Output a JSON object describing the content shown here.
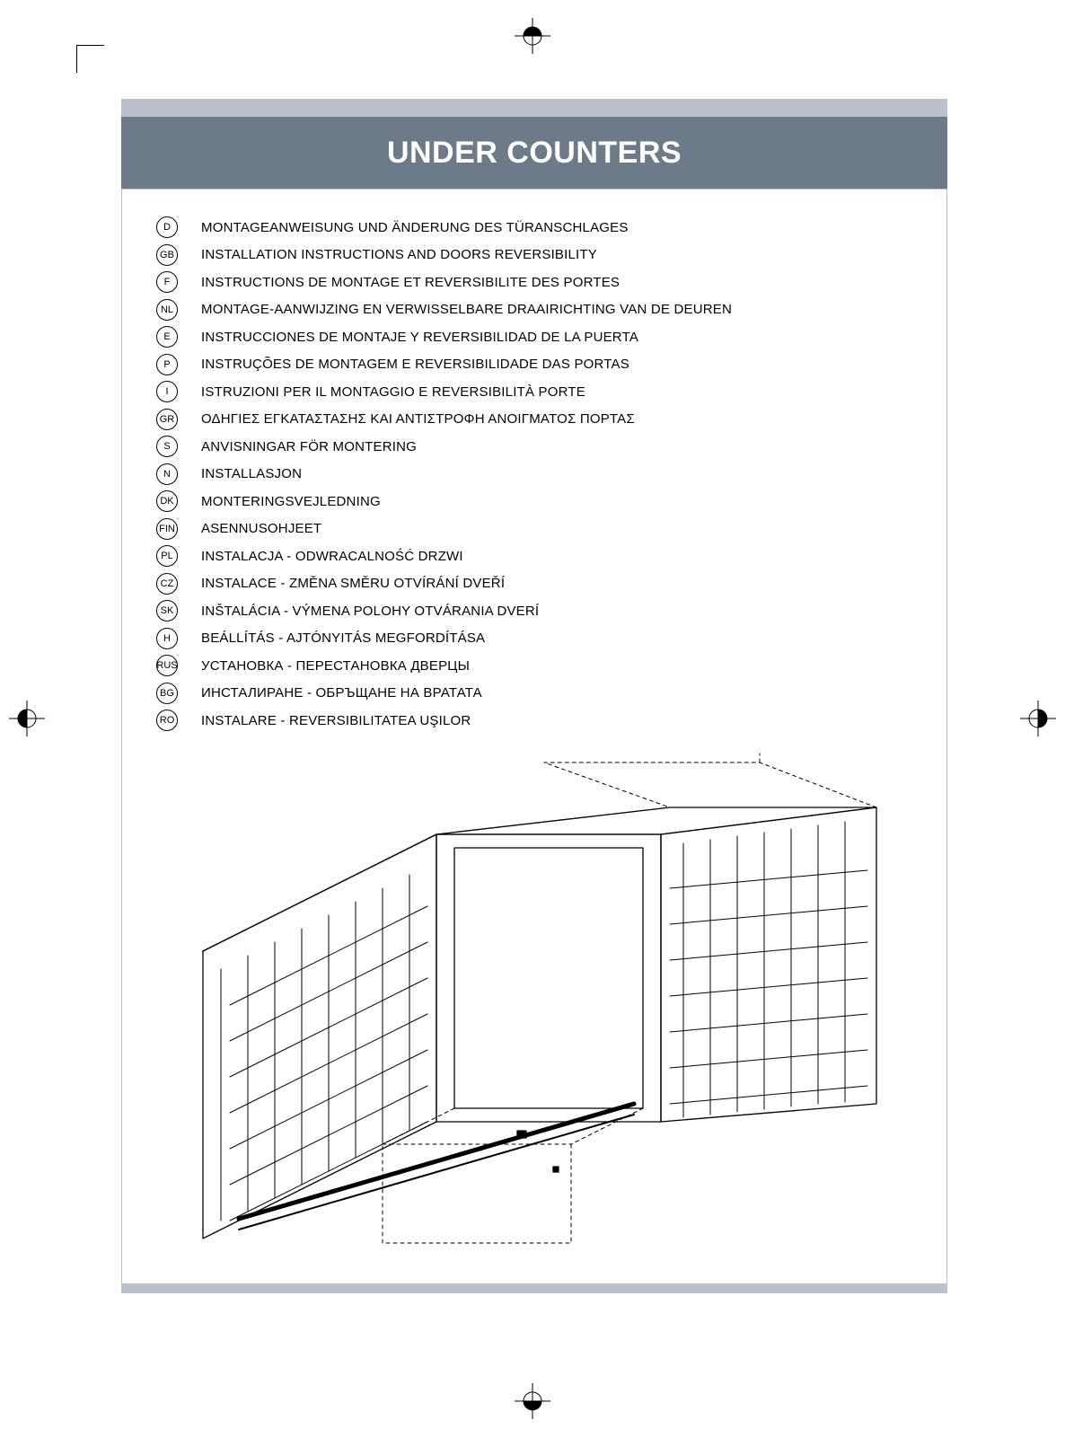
{
  "title": "UNDER COUNTERS",
  "colors": {
    "band": "#6c7a89",
    "band_bg": "#b9c2cb",
    "border": "#c0c0c0",
    "text": "#000000",
    "title_text": "#ffffff"
  },
  "typography": {
    "title_fontsize": 34,
    "title_weight": "bold",
    "list_fontsize": 15,
    "badge_fontsize": 11
  },
  "langs": [
    {
      "code": "D",
      "text": "MONTAGEANWEISUNG UND ÄNDERUNG DES TÜRANSCHLAGES"
    },
    {
      "code": "GB",
      "text": "INSTALLATION INSTRUCTIONS AND DOORS REVERSIBILITY"
    },
    {
      "code": "F",
      "text": "INSTRUCTIONS DE MONTAGE ET REVERSIBILITE DES PORTES"
    },
    {
      "code": "NL",
      "text": "MONTAGE-AANWIJZING EN VERWISSELBARE DRAAIRICHTING VAN DE DEUREN"
    },
    {
      "code": "E",
      "text": "INSTRUCCIONES DE MONTAJE Y REVERSIBILIDAD DE LA PUERTA"
    },
    {
      "code": "P",
      "text": "INSTRUÇÕES DE MONTAGEM E REVERSIBILIDADE DAS PORTAS"
    },
    {
      "code": "I",
      "text": "ISTRUZIONI PER IL MONTAGGIO E REVERSIBILITÀ PORTE"
    },
    {
      "code": "GR",
      "text": "ΟΔΗΓΙΕΣ ΕΓΚΑΤΑΣΤΑΣΗΣ ΚΑΙ ΑΝΤΙΣΤΡΟΦΗ ΑΝΟΙΓΜΑΤΟΣ ΠΟΡΤΑΣ"
    },
    {
      "code": "S",
      "text": "ANVISNINGAR FÖR MONTERING"
    },
    {
      "code": "N",
      "text": "INSTALLASJON"
    },
    {
      "code": "DK",
      "text": "MONTERINGSVEJLEDNING"
    },
    {
      "code": "FIN",
      "text": "ASENNUSOHJEET"
    },
    {
      "code": "PL",
      "text": "INSTALACJA - ODWRACALNOŚĆ DRZWI"
    },
    {
      "code": "CZ",
      "text": "INSTALACE - ZMĚNA SMĚRU OTVÍRÁNÍ DVEŘÍ"
    },
    {
      "code": "SK",
      "text": "INŠTALÁCIA - VÝMENA POLOHY OTVÁRANIA DVERÍ"
    },
    {
      "code": "H",
      "text": "BEÁLLÍTÁS - AJTÓNYITÁS MEGFORDÍTÁSA"
    },
    {
      "code": "RUS",
      "text": "УСТАНОВКА - ПЕРЕСТАНОВКА ДВЕРЦЫ"
    },
    {
      "code": "BG",
      "text": "ИНСТАЛИРАНЕ - ОБРЪЩАНЕ НА ВРАТАТА"
    },
    {
      "code": "RO",
      "text": "INSTALARE - REVERSIBILITATEA UŞILOR"
    }
  ],
  "diagram": {
    "type": "isometric-line-drawing",
    "stroke": "#000000",
    "stroke_width": 1.2,
    "dash": "3 3"
  }
}
